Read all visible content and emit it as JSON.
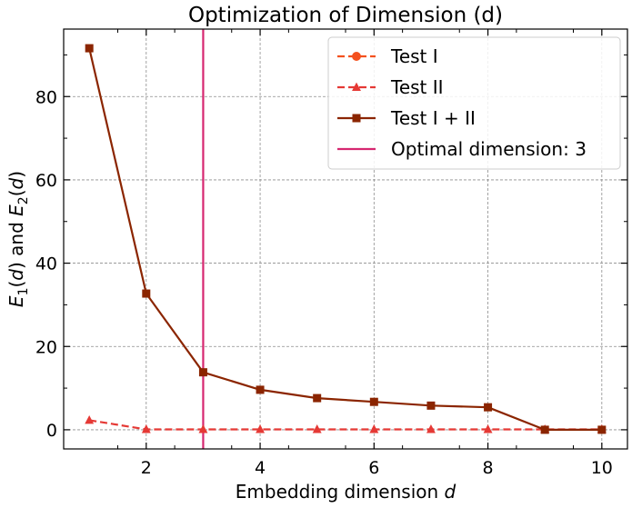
{
  "chart_data": {
    "type": "line",
    "title": "Optimization of Dimension (d)",
    "xlabel": "Embedding dimension d",
    "xlabel_parts": [
      "Embedding dimension ",
      "d"
    ],
    "ylabel": "E1(d) and E2(d)",
    "xlim": [
      0.55,
      10.45
    ],
    "ylim": [
      -4.6,
      96.2
    ],
    "x_ticks": [
      2,
      4,
      6,
      8,
      10
    ],
    "y_ticks": [
      0,
      20,
      40,
      60,
      80
    ],
    "grid": true,
    "grid_style": "dashed",
    "legend_position": "top-right",
    "x": [
      1,
      2,
      3,
      4,
      5,
      6,
      7,
      8,
      9,
      10
    ],
    "series": [
      {
        "name": "Test I",
        "values": [
          null,
          null,
          null,
          null,
          null,
          null,
          null,
          null,
          null,
          null
        ],
        "color": "#f4511e",
        "line": "dashed",
        "marker": "circle"
      },
      {
        "name": "Test II",
        "values": [
          2.3,
          0.1,
          0.1,
          0.1,
          0.1,
          0.1,
          0.1,
          0.1,
          0.1,
          0.1
        ],
        "color": "#e53935",
        "line": "dashed",
        "marker": "triangle"
      },
      {
        "name": "Test I + II",
        "values": [
          91.6,
          32.7,
          13.8,
          9.6,
          7.6,
          6.7,
          5.8,
          5.4,
          0.0,
          0.0
        ],
        "color": "#8b2500",
        "line": "solid",
        "marker": "square"
      }
    ],
    "vline": {
      "x": 3,
      "name": "Optimal dimension: 3",
      "color": "#d62770"
    }
  }
}
